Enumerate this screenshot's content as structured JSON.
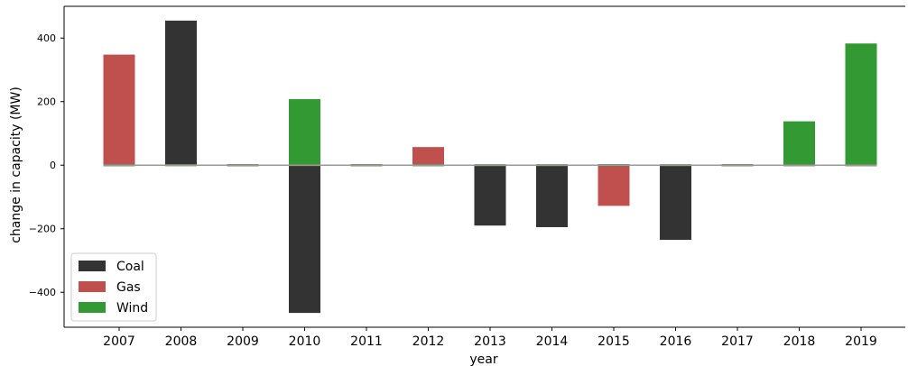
{
  "chart_data": {
    "type": "bar",
    "stacked": true,
    "categories": [
      "2007",
      "2008",
      "2009",
      "2010",
      "2011",
      "2012",
      "2013",
      "2014",
      "2015",
      "2016",
      "2017",
      "2018",
      "2019"
    ],
    "series": [
      {
        "name": "Coal",
        "color": "#333333",
        "values": [
          0,
          455,
          0,
          -465,
          0,
          0,
          -190,
          -195,
          0,
          -235,
          0,
          0,
          0
        ]
      },
      {
        "name": "Gas",
        "color": "#c0504d",
        "values": [
          348,
          0,
          0,
          0,
          0,
          57,
          0,
          0,
          -128,
          0,
          0,
          0,
          0
        ]
      },
      {
        "name": "Wind",
        "color": "#339933",
        "values": [
          0,
          0,
          0,
          208,
          0,
          0,
          0,
          0,
          0,
          0,
          0,
          138,
          383
        ]
      }
    ],
    "ylim": [
      -510,
      500
    ],
    "yticks": [
      -400,
      -200,
      0,
      200,
      400
    ],
    "ytick_labels": [
      "−400",
      "−200",
      "0",
      "200",
      "400"
    ],
    "xlabel": "year",
    "ylabel": "change in capacity (MW)",
    "zero_line": true,
    "legend_position": "lower-left"
  }
}
